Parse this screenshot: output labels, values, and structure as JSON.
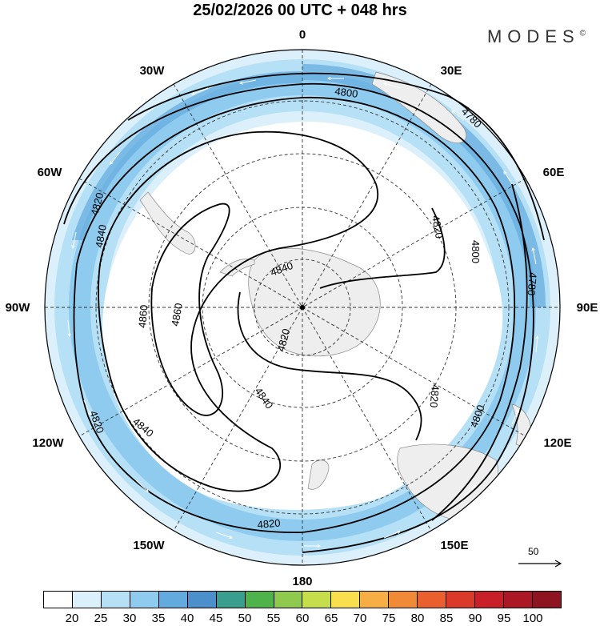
{
  "title": "25/02/2026  00 UTC  + 048 hrs",
  "brand": "MODES",
  "brand_mark": "©",
  "longitude_labels": [
    "0",
    "30E",
    "60E",
    "90E",
    "120E",
    "150E",
    "180",
    "150W",
    "120W",
    "90W",
    "60W",
    "30W"
  ],
  "contour_labels": [
    "4800",
    "4780",
    "4820",
    "4840",
    "4860",
    "4800",
    "4780",
    "4820",
    "4840",
    "4860",
    "4820",
    "4840",
    "4820",
    "4800",
    "4820",
    "4840",
    "4820"
  ],
  "reference_vector": {
    "value": "50"
  },
  "colorbar": {
    "colors": [
      "#ffffff",
      "#dbf0fb",
      "#b6e0f6",
      "#8ecbef",
      "#63aade",
      "#4b8fcb",
      "#3a9e8f",
      "#4fb34b",
      "#8fca4f",
      "#c6de4c",
      "#f9df4d",
      "#f7ae45",
      "#f18a37",
      "#e9602e",
      "#db3a2b",
      "#c81f29",
      "#ab1725",
      "#8d1420"
    ],
    "labels": [
      "20",
      "25",
      "30",
      "35",
      "40",
      "45",
      "50",
      "55",
      "60",
      "65",
      "70",
      "75",
      "80",
      "85",
      "90",
      "95",
      "100"
    ]
  }
}
